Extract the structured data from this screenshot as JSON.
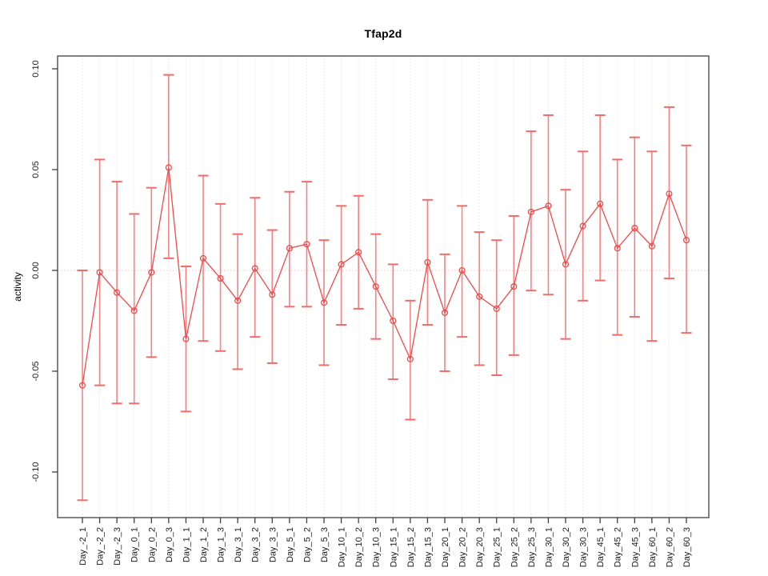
{
  "title": "Tfap2d",
  "chart_data": {
    "type": "line",
    "title": "Tfap2d",
    "xlabel": "",
    "ylabel": "activity",
    "ylim": [
      -0.12,
      0.105
    ],
    "yticks": [
      0.1,
      0.05,
      0.0,
      -0.05,
      -0.1
    ],
    "ytick_labels": [
      "0.10",
      "0.05",
      "0.00",
      "-0.05",
      "-0.10"
    ],
    "grid": "vertical dotted gridline at every category",
    "zero_line_value": 0.0,
    "legend": "none",
    "marker": "open-circle",
    "error_bars": true,
    "categories": [
      "Day_-2_1",
      "Day_-2_2",
      "Day_-2_3",
      "Day_0_1",
      "Day_0_2",
      "Day_0_3",
      "Day_1_1",
      "Day_1_2",
      "Day_1_3",
      "Day_3_1",
      "Day_3_2",
      "Day_3_3",
      "Day_5_1",
      "Day_5_2",
      "Day_5_3",
      "Day_10_1",
      "Day_10_2",
      "Day_10_3",
      "Day_15_1",
      "Day_15_2",
      "Day_15_3",
      "Day_20_1",
      "Day_20_2",
      "Day_20_3",
      "Day_25_1",
      "Day_25_2",
      "Day_25_3",
      "Day_30_1",
      "Day_30_2",
      "Day_30_3",
      "Day_45_1",
      "Day_45_2",
      "Day_45_3",
      "Day_60_1",
      "Day_60_2",
      "Day_60_3"
    ],
    "series": [
      {
        "name": "activity",
        "values": [
          -0.057,
          -0.001,
          -0.011,
          -0.02,
          -0.001,
          0.051,
          -0.034,
          0.006,
          -0.004,
          -0.015,
          0.001,
          -0.012,
          0.011,
          0.013,
          -0.016,
          0.003,
          0.009,
          -0.008,
          -0.025,
          -0.044,
          0.004,
          -0.021,
          0.0,
          -0.013,
          -0.019,
          -0.008,
          0.029,
          0.032,
          0.003,
          0.022,
          0.033,
          0.011,
          0.021,
          0.012,
          0.038,
          0.015
        ],
        "lower": [
          -0.114,
          -0.057,
          -0.066,
          -0.066,
          -0.043,
          0.006,
          -0.07,
          -0.035,
          -0.04,
          -0.049,
          -0.033,
          -0.046,
          -0.018,
          -0.018,
          -0.047,
          -0.027,
          -0.019,
          -0.034,
          -0.054,
          -0.074,
          -0.027,
          -0.05,
          -0.033,
          -0.047,
          -0.052,
          -0.042,
          -0.01,
          -0.012,
          -0.034,
          -0.015,
          -0.005,
          -0.032,
          -0.023,
          -0.035,
          -0.004,
          -0.031
        ],
        "upper": [
          0.0,
          0.055,
          0.044,
          0.028,
          0.041,
          0.097,
          0.002,
          0.047,
          0.033,
          0.018,
          0.036,
          0.02,
          0.039,
          0.044,
          0.015,
          0.032,
          0.037,
          0.018,
          0.003,
          -0.015,
          0.035,
          0.008,
          0.032,
          0.019,
          0.015,
          0.027,
          0.069,
          0.077,
          0.04,
          0.059,
          0.077,
          0.055,
          0.066,
          0.059,
          0.081,
          0.062
        ]
      }
    ],
    "colors": {
      "series_line": "#ef4a4a",
      "marker_stroke": "#ef4a4a",
      "whisker": "#f58383",
      "whisker_cap": "#f26b6b",
      "zero_line": "#ffc8c8",
      "grid_line": "#d9d9d9",
      "axis": "#404040",
      "tick_label": "#1a1a1a",
      "background": "#ffffff"
    }
  }
}
